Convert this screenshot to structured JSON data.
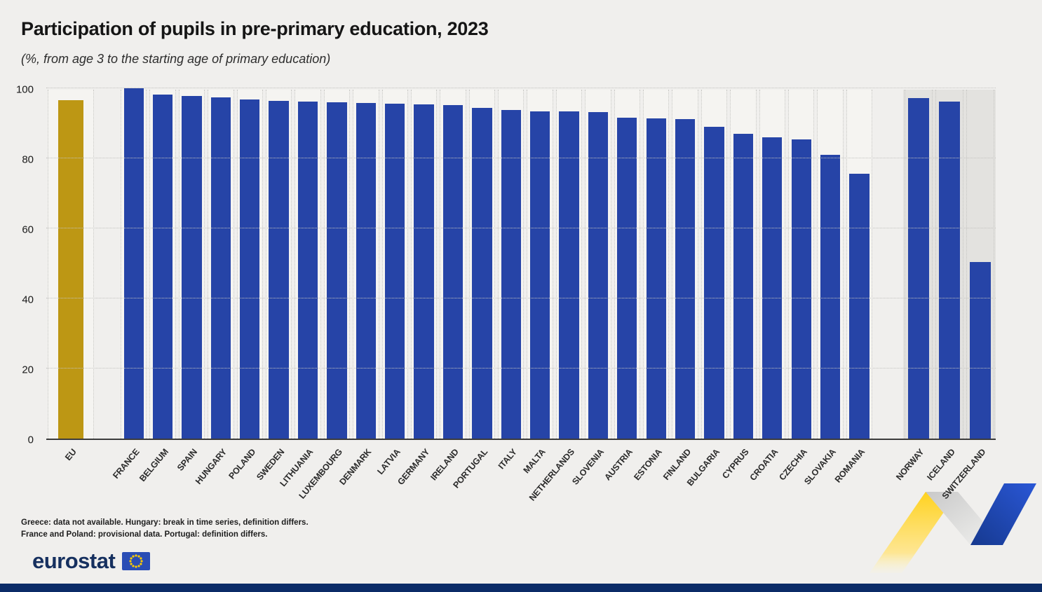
{
  "header": {
    "title": "Participation of pupils in pre-primary education, 2023",
    "subtitle": "(%, from age 3 to the starting age of primary education)"
  },
  "chart_data": {
    "type": "bar",
    "title": "Participation of pupils in pre-primary education, 2023",
    "subtitle": "(%, from age 3 to the starting age of primary education)",
    "xlabel": "",
    "ylabel": "%",
    "ylim": [
      0,
      100
    ],
    "yticks": [
      0,
      20,
      40,
      60,
      80,
      100
    ],
    "grid": "dotted",
    "legend": "none",
    "colors": {
      "eu_aggregate": "#BD9714",
      "country_bars": "#2644A7",
      "non_eu_band_background": "#E3E2DF"
    },
    "groups": [
      {
        "name": "eu-aggregate",
        "color": "#BD9714",
        "bars": [
          {
            "label": "EU",
            "value": 96.6
          }
        ]
      },
      {
        "name": "eu-countries",
        "color": "#2644A7",
        "bars": [
          {
            "label": "FRANCE",
            "value": 100.0
          },
          {
            "label": "BELGIUM",
            "value": 98.3
          },
          {
            "label": "SPAIN",
            "value": 97.8
          },
          {
            "label": "HUNGARY",
            "value": 97.5
          },
          {
            "label": "POLAND",
            "value": 96.8
          },
          {
            "label": "SWEDEN",
            "value": 96.5
          },
          {
            "label": "LITHUANIA",
            "value": 96.3
          },
          {
            "label": "LUXEMBOURG",
            "value": 96.1
          },
          {
            "label": "DENMARK",
            "value": 95.9
          },
          {
            "label": "LATVIA",
            "value": 95.6
          },
          {
            "label": "GERMANY",
            "value": 95.4
          },
          {
            "label": "IRELAND",
            "value": 95.2
          },
          {
            "label": "PORTUGAL",
            "value": 94.4
          },
          {
            "label": "ITALY",
            "value": 93.8
          },
          {
            "label": "MALTA",
            "value": 93.5
          },
          {
            "label": "NETHERLANDS",
            "value": 93.4
          },
          {
            "label": "SLOVENIA",
            "value": 93.3
          },
          {
            "label": "AUSTRIA",
            "value": 91.6
          },
          {
            "label": "ESTONIA",
            "value": 91.5
          },
          {
            "label": "FINLAND",
            "value": 91.3
          },
          {
            "label": "BULGARIA",
            "value": 89.0
          },
          {
            "label": "CYPRUS",
            "value": 87.0
          },
          {
            "label": "CROATIA",
            "value": 86.0
          },
          {
            "label": "CZECHIA",
            "value": 85.5
          },
          {
            "label": "SLOVAKIA",
            "value": 81.0
          },
          {
            "label": "ROMANIA",
            "value": 75.7
          }
        ]
      },
      {
        "name": "non-eu-countries",
        "color": "#2644A7",
        "background": "#E3E2DF",
        "bars": [
          {
            "label": "NORWAY",
            "value": 97.3
          },
          {
            "label": "ICELAND",
            "value": 96.2
          },
          {
            "label": "SWITZERLAND",
            "value": 50.5
          }
        ]
      }
    ]
  },
  "footnotes": [
    "Greece: data not available. Hungary: break in time series, definition differs.",
    "France and Poland: provisional data. Portugal: definition differs."
  ],
  "logo": {
    "text": "eurostat"
  }
}
